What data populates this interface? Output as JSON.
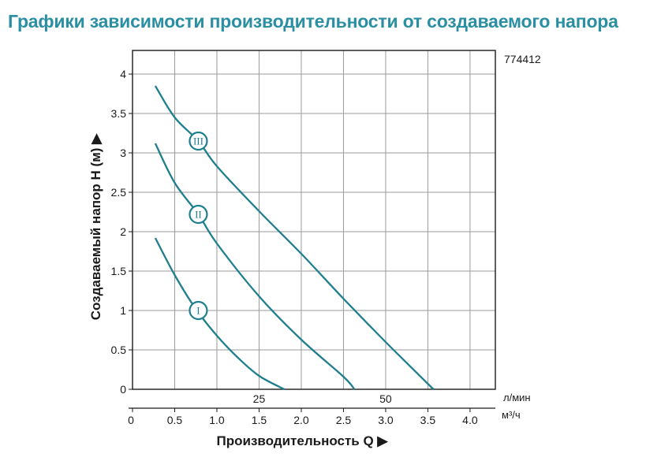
{
  "page": {
    "title": "Графики зависимости производительности от создаваемого напора"
  },
  "model_code": "774412",
  "chart_data": {
    "type": "line",
    "title": "",
    "ylabel": "Создаваемый напор H (м)",
    "xlabel": "Производительность Q",
    "ylim": [
      0,
      4.3
    ],
    "xlim": [
      0,
      4.3
    ],
    "y_ticks": [
      "0",
      "0.5",
      "1",
      "1.5",
      "2",
      "2.5",
      "3",
      "3.5",
      "4"
    ],
    "y_tick_values": [
      0,
      0.5,
      1,
      1.5,
      2,
      2.5,
      3,
      3.5,
      4
    ],
    "x_ticks_m3h": [
      "0",
      "0.5",
      "1.0",
      "1.5",
      "2.0",
      "2.5",
      "3.0",
      "3.5",
      "4.0"
    ],
    "x_tick_values_m3h": [
      0,
      0.5,
      1.0,
      1.5,
      2.0,
      2.5,
      3.0,
      3.5,
      4.0
    ],
    "x_ticks_lmin": [
      "25",
      "50"
    ],
    "x_tick_values_lmin": [
      25,
      50
    ],
    "x_unit_lmin": "л/мин",
    "x_unit_m3h": "м³/ч",
    "grid": true,
    "series": [
      {
        "name": "I",
        "x": [
          0.27,
          0.5,
          0.75,
          1.0,
          1.25,
          1.5,
          1.8
        ],
        "y": [
          1.92,
          1.45,
          1.02,
          0.68,
          0.4,
          0.17,
          0.0
        ]
      },
      {
        "name": "II",
        "x": [
          0.27,
          0.5,
          0.78,
          1.0,
          1.5,
          2.0,
          2.5,
          2.63
        ],
        "y": [
          3.12,
          2.62,
          2.22,
          1.85,
          1.18,
          0.63,
          0.16,
          0.0
        ]
      },
      {
        "name": "III",
        "x": [
          0.27,
          0.5,
          0.78,
          1.0,
          1.5,
          2.0,
          2.5,
          3.0,
          3.5,
          3.57
        ],
        "y": [
          3.85,
          3.45,
          3.15,
          2.83,
          2.26,
          1.72,
          1.15,
          0.6,
          0.07,
          0.0
        ]
      }
    ],
    "badges": [
      {
        "label": "I",
        "series": "I",
        "x": 0.78,
        "y": 1.0
      },
      {
        "label": "II",
        "series": "II",
        "x": 0.78,
        "y": 2.22
      },
      {
        "label": "III",
        "series": "III",
        "x": 0.78,
        "y": 3.15
      }
    ],
    "colors": {
      "curve": "#1f7f8f",
      "title": "#2a8fa3"
    }
  }
}
